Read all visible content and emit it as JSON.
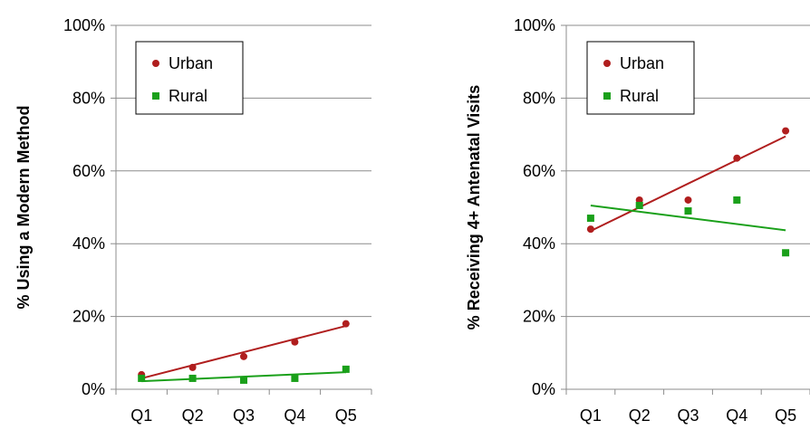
{
  "colors": {
    "urban": "#b01e1e",
    "rural": "#1aa01a",
    "axis": "#8c8c8c",
    "grid": "#8c8c8c"
  },
  "chart_data": [
    {
      "type": "scatter",
      "title": "",
      "xlabel": "",
      "ylabel": "% Using a Modern Method",
      "categories": [
        "Q1",
        "Q2",
        "Q3",
        "Q4",
        "Q5"
      ],
      "ylim": [
        0,
        100
      ],
      "yticks": [
        "0%",
        "20%",
        "40%",
        "60%",
        "80%",
        "100%"
      ],
      "grid": true,
      "legend_position": "top-left",
      "trendlines": true,
      "series": [
        {
          "name": "Urban",
          "marker": "circle",
          "values": [
            4,
            6,
            9,
            13,
            18
          ],
          "trend": [
            3,
            6.6,
            10.2,
            13.8,
            17.4
          ]
        },
        {
          "name": "Rural",
          "marker": "square",
          "values": [
            3,
            3,
            2.5,
            3,
            5.5
          ],
          "trend": [
            2.2,
            2.8,
            3.4,
            4,
            4.7
          ]
        }
      ]
    },
    {
      "type": "scatter",
      "title": "",
      "xlabel": "",
      "ylabel": "% Receiving 4+ Antenatal Visits",
      "categories": [
        "Q1",
        "Q2",
        "Q3",
        "Q4",
        "Q5"
      ],
      "ylim": [
        0,
        100
      ],
      "yticks": [
        "0%",
        "20%",
        "40%",
        "60%",
        "80%",
        "100%"
      ],
      "grid": true,
      "legend_position": "top-left",
      "trendlines": true,
      "series": [
        {
          "name": "Urban",
          "marker": "circle",
          "values": [
            44,
            52,
            52,
            63.5,
            71
          ],
          "trend": [
            43.5,
            50,
            56.5,
            63,
            69.5
          ]
        },
        {
          "name": "Rural",
          "marker": "square",
          "values": [
            47,
            50.5,
            49,
            52,
            37.5
          ],
          "trend": [
            50.5,
            48.8,
            47.1,
            45.4,
            43.7
          ]
        }
      ]
    }
  ]
}
